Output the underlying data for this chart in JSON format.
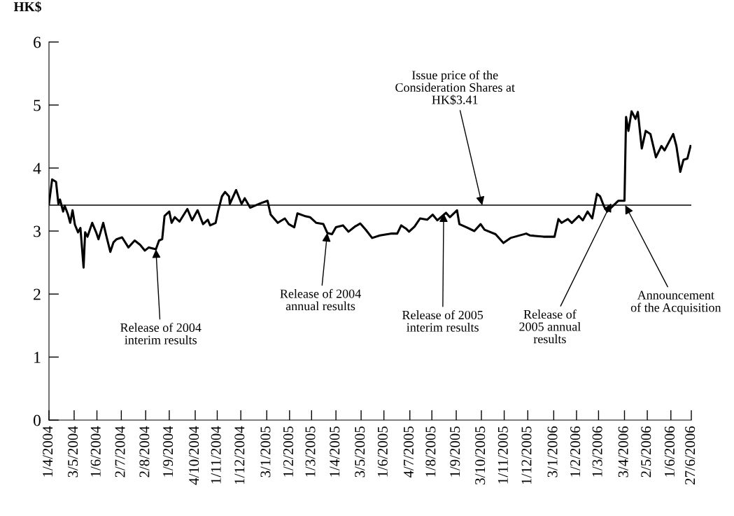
{
  "chart_data": {
    "type": "line",
    "ylabel": "HK$",
    "x": [
      "2004-04-01",
      "2004-04-05",
      "2004-04-10",
      "2004-04-13",
      "2004-04-15",
      "2004-04-19",
      "2004-04-21",
      "2004-04-25",
      "2004-04-28",
      "2004-05-01",
      "2004-05-04",
      "2004-05-08",
      "2004-05-11",
      "2004-05-15",
      "2004-05-17",
      "2004-05-20",
      "2004-05-26",
      "2004-05-31",
      "2004-06-03",
      "2004-06-09",
      "2004-06-13",
      "2004-06-18",
      "2004-06-22",
      "2004-06-26",
      "2004-07-03",
      "2004-07-11",
      "2004-07-19",
      "2004-07-26",
      "2004-08-01",
      "2004-08-06",
      "2004-08-15",
      "2004-08-19",
      "2004-08-23",
      "2004-08-26",
      "2004-09-01",
      "2004-09-04",
      "2004-09-08",
      "2004-09-14",
      "2004-09-24",
      "2004-09-30",
      "2004-10-07",
      "2004-10-14",
      "2004-10-20",
      "2004-10-23",
      "2004-10-30",
      "2004-11-02",
      "2004-11-07",
      "2004-11-11",
      "2004-11-16",
      "2004-11-17",
      "2004-11-25",
      "2004-12-02",
      "2004-12-06",
      "2004-12-13",
      "2004-12-26",
      "2005-01-04",
      "2005-01-08",
      "2005-01-17",
      "2005-01-26",
      "2005-01-31",
      "2005-02-07",
      "2005-02-11",
      "2005-02-20",
      "2005-02-27",
      "2005-03-07",
      "2005-03-16",
      "2005-03-21",
      "2005-03-27",
      "2005-04-01",
      "2005-04-10",
      "2005-04-17",
      "2005-04-25",
      "2005-05-02",
      "2005-05-09",
      "2005-05-17",
      "2005-05-27",
      "2005-06-11",
      "2005-06-18",
      "2005-06-23",
      "2005-06-29",
      "2005-07-03",
      "2005-07-10",
      "2005-07-17",
      "2005-07-26",
      "2005-08-02",
      "2005-08-08",
      "2005-08-19",
      "2005-08-24",
      "2005-09-02",
      "2005-09-05",
      "2005-09-14",
      "2005-09-24",
      "2005-10-02",
      "2005-10-07",
      "2005-10-21",
      "2005-10-31",
      "2005-11-09",
      "2005-11-29",
      "2005-12-04",
      "2005-12-21",
      "2006-01-04",
      "2006-01-09",
      "2006-01-13",
      "2006-01-21",
      "2006-01-26",
      "2006-02-04",
      "2006-02-09",
      "2006-02-15",
      "2006-02-21",
      "2006-02-27",
      "2006-03-03",
      "2006-03-08",
      "2006-03-12",
      "2006-03-17",
      "2006-03-26",
      "2006-04-03",
      "2006-04-05",
      "2006-04-08",
      "2006-04-12",
      "2006-04-17",
      "2006-04-20",
      "2006-04-25",
      "2006-04-30",
      "2006-05-06",
      "2006-05-13",
      "2006-05-20",
      "2006-05-24",
      "2006-06-04",
      "2006-06-08",
      "2006-06-13",
      "2006-06-17",
      "2006-06-22",
      "2006-06-26"
    ],
    "series": [
      {
        "color": "#000000",
        "values": [
          3.43,
          3.82,
          3.78,
          3.43,
          3.5,
          3.31,
          3.4,
          3.27,
          3.13,
          3.33,
          3.1,
          2.98,
          3.05,
          2.42,
          2.98,
          2.91,
          3.13,
          2.98,
          2.87,
          3.13,
          2.92,
          2.67,
          2.82,
          2.87,
          2.9,
          2.74,
          2.85,
          2.78,
          2.69,
          2.74,
          2.71,
          2.85,
          2.87,
          3.24,
          3.31,
          3.13,
          3.22,
          3.15,
          3.35,
          3.17,
          3.33,
          3.11,
          3.18,
          3.09,
          3.13,
          3.31,
          3.55,
          3.62,
          3.55,
          3.43,
          3.65,
          3.43,
          3.52,
          3.37,
          3.44,
          3.48,
          3.26,
          3.13,
          3.2,
          3.11,
          3.06,
          3.28,
          3.24,
          3.22,
          3.13,
          3.11,
          2.97,
          2.95,
          3.06,
          3.09,
          2.99,
          3.07,
          3.12,
          3.02,
          2.89,
          2.93,
          2.96,
          2.96,
          3.09,
          3.04,
          2.99,
          3.07,
          3.2,
          3.18,
          3.26,
          3.17,
          3.29,
          3.22,
          3.33,
          3.11,
          3.06,
          3.0,
          3.11,
          3.02,
          2.95,
          2.81,
          2.89,
          2.96,
          2.93,
          2.91,
          2.91,
          3.19,
          3.13,
          3.19,
          3.13,
          3.24,
          3.17,
          3.31,
          3.2,
          3.59,
          3.55,
          3.39,
          3.31,
          3.37,
          3.48,
          3.48,
          4.81,
          4.59,
          4.9,
          4.78,
          4.89,
          4.31,
          4.59,
          4.54,
          4.17,
          4.35,
          4.28,
          4.54,
          4.35,
          3.94,
          4.13,
          4.15,
          4.35
        ]
      }
    ],
    "xlim": [
      "2004-04-01",
      "2006-06-27"
    ],
    "xticks": [
      {
        "value": "2004-04-01",
        "label": "1/4/2004"
      },
      {
        "value": "2004-05-03",
        "label": "3/5/2004"
      },
      {
        "value": "2004-06-01",
        "label": "1/6/2004"
      },
      {
        "value": "2004-07-02",
        "label": "2/7/2004"
      },
      {
        "value": "2004-08-02",
        "label": "2/8/2004"
      },
      {
        "value": "2004-09-01",
        "label": "1/9/2004"
      },
      {
        "value": "2004-10-04",
        "label": "4/10/2004"
      },
      {
        "value": "2004-11-01",
        "label": "1/11/2004"
      },
      {
        "value": "2004-12-01",
        "label": "1/12/2004"
      },
      {
        "value": "2005-01-03",
        "label": "3/1/2005"
      },
      {
        "value": "2005-02-01",
        "label": "1/2/2005"
      },
      {
        "value": "2005-03-01",
        "label": "1/3/2005"
      },
      {
        "value": "2005-04-01",
        "label": "1/4/2005"
      },
      {
        "value": "2005-05-03",
        "label": "3/5/2005"
      },
      {
        "value": "2005-06-01",
        "label": "1/6/2005"
      },
      {
        "value": "2005-07-04",
        "label": "4/7/2005"
      },
      {
        "value": "2005-08-01",
        "label": "1/8/2005"
      },
      {
        "value": "2005-09-01",
        "label": "1/9/2005"
      },
      {
        "value": "2005-10-03",
        "label": "3/10/2005"
      },
      {
        "value": "2005-11-01",
        "label": "1/11/2005"
      },
      {
        "value": "2005-12-01",
        "label": "1/12/2005"
      },
      {
        "value": "2006-01-03",
        "label": "3/1/2006"
      },
      {
        "value": "2006-02-01",
        "label": "1/2/2006"
      },
      {
        "value": "2006-03-01",
        "label": "1/3/2006"
      },
      {
        "value": "2006-04-03",
        "label": "3/4/2006"
      },
      {
        "value": "2006-05-02",
        "label": "2/5/2006"
      },
      {
        "value": "2006-06-01",
        "label": "1/6/2006"
      },
      {
        "value": "2006-06-27",
        "label": "27/6/2006"
      }
    ],
    "ylim": [
      0,
      6
    ],
    "yticks": [
      0,
      1,
      2,
      3,
      4,
      5,
      6
    ],
    "ref_lines": [
      {
        "axis": "y",
        "value": 3.41,
        "color": "#000000"
      }
    ],
    "annotations": [
      {
        "text": "Release of 2004\ninterim results",
        "x": "2004-08-15",
        "y": 2.71
      },
      {
        "text": "Release of 2004\nannual results",
        "x": "2005-03-21",
        "y": 2.97
      },
      {
        "text": "Release of 2005\ninterim results",
        "x": "2005-08-16",
        "y": 3.28
      },
      {
        "text": "Issue price of the\nConsideration Shares at\nHK$3.41",
        "x": "2005-10-04",
        "y": 3.41
      },
      {
        "text": "Release of\n2005 annual\nresults",
        "x": "2006-03-17",
        "y": 3.44
      },
      {
        "text": "Announcement\nof the Acquisition",
        "x": "2006-04-04",
        "y": 3.41
      }
    ],
    "grid": false,
    "marker": "none",
    "line_style": "solid"
  }
}
